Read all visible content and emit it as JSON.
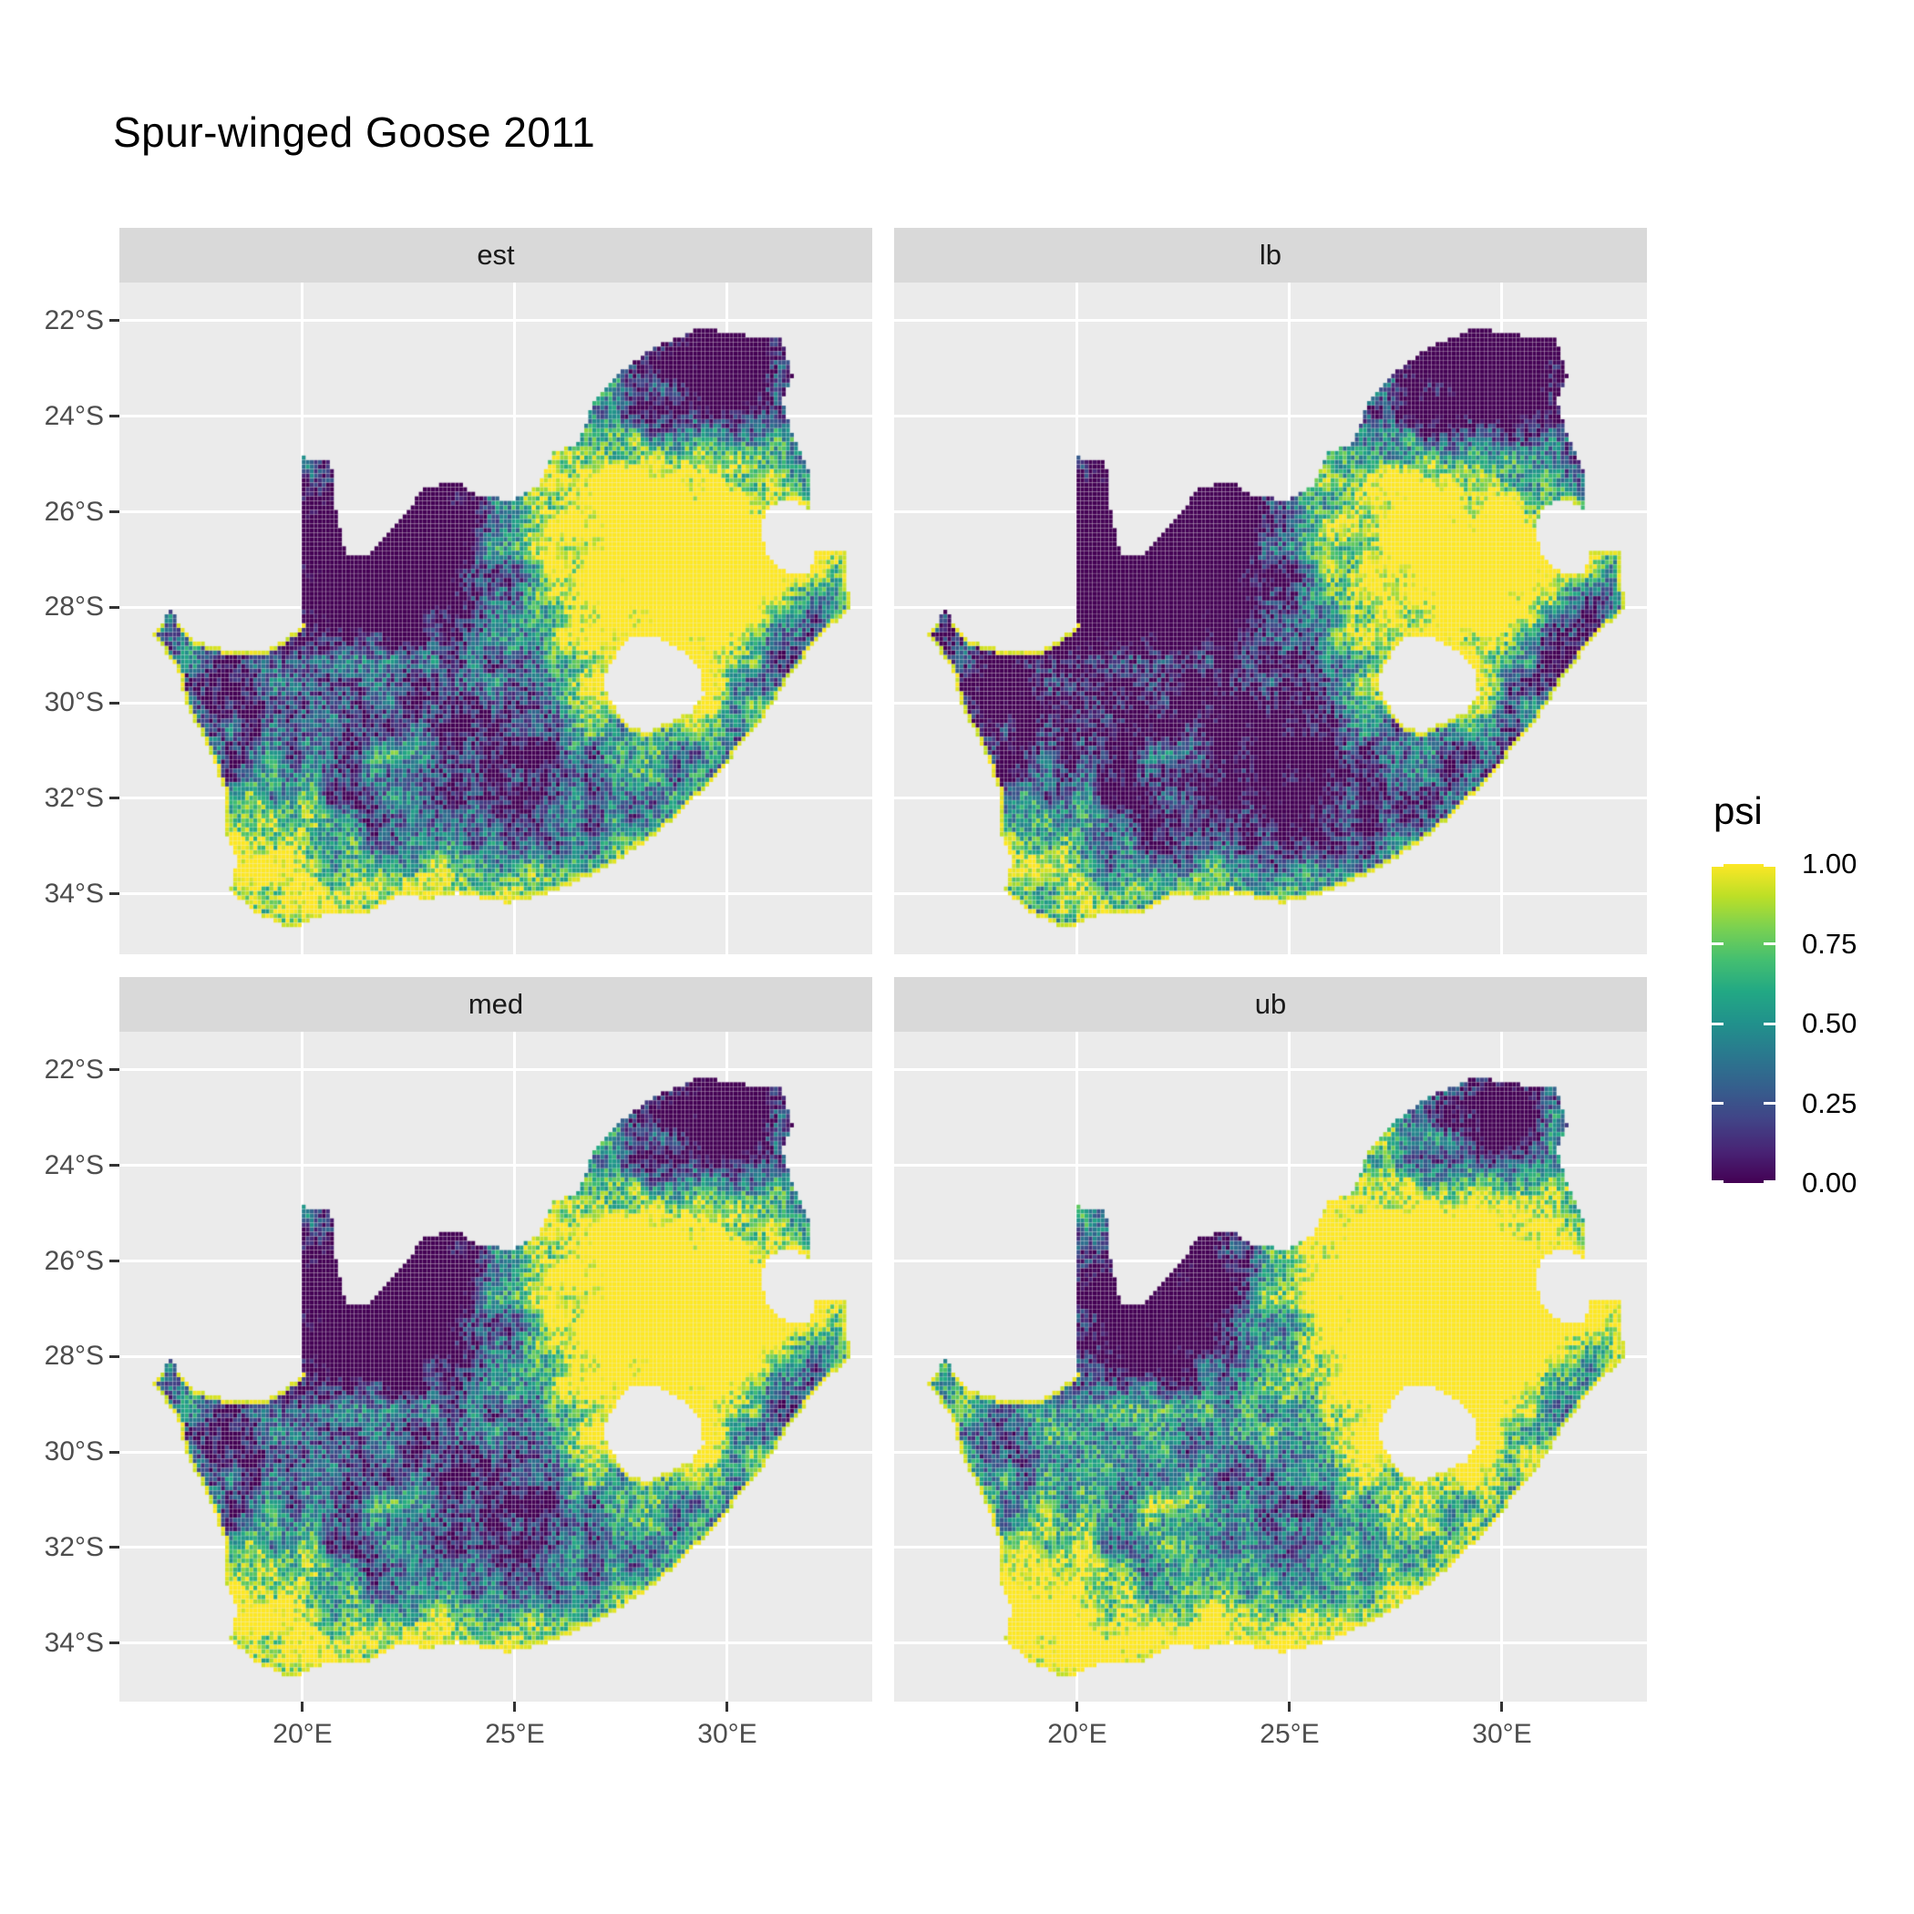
{
  "title": "Spur-winged Goose 2011",
  "facets": [
    {
      "label": "est",
      "shift": 0.0
    },
    {
      "label": "lb",
      "shift": -0.22
    },
    {
      "label": "med",
      "shift": 0.03
    },
    {
      "label": "ub",
      "shift": 0.25
    }
  ],
  "axes": {
    "y_tick_labels": [
      "22°S",
      "24°S",
      "26°S",
      "28°S",
      "30°S",
      "32°S",
      "34°S"
    ],
    "y_tick_values": [
      -22,
      -24,
      -26,
      -28,
      -30,
      -32,
      -34
    ],
    "x_tick_labels": [
      "20°E",
      "25°E",
      "30°E"
    ],
    "x_tick_values": [
      20,
      25,
      30
    ]
  },
  "legend": {
    "title": "psi",
    "labels": [
      "1.00",
      "0.75",
      "0.50",
      "0.25",
      "0.00"
    ],
    "values": [
      1.0,
      0.75,
      0.5,
      0.25,
      0.0
    ]
  },
  "colors": {
    "background": "#FFFFFF",
    "panel_bg": "#EBEBEB",
    "strip_bg": "#D9D9D9",
    "strip_text": "#1A1A1A",
    "axis_text": "#4D4D4D",
    "tick_mark": "#333333",
    "gridline": "#FFFFFF",
    "title_text": "#000000",
    "viridis": [
      "#440154",
      "#482475",
      "#414487",
      "#355F8D",
      "#2A788E",
      "#21918C",
      "#22A884",
      "#44BF70",
      "#7AD151",
      "#BDDF26",
      "#FDE725"
    ]
  },
  "chart_data": {
    "type": "heatmap",
    "subtype": "faceted_raster_map",
    "title": "Spur-winged Goose 2011",
    "region": "South Africa",
    "facets": [
      "est",
      "lb",
      "med",
      "ub"
    ],
    "facet_layout": [
      [
        "est",
        "lb"
      ],
      [
        "med",
        "ub"
      ]
    ],
    "fill_variable": "psi",
    "fill_range": [
      0.0,
      1.0
    ],
    "legend_ticks": [
      0.0,
      0.25,
      0.5,
      0.75,
      1.0
    ],
    "colormap": "viridis",
    "x_axis": {
      "ticks_deg_east": [
        20,
        25,
        30
      ],
      "range_deg_east": [
        15.7,
        33.4
      ]
    },
    "y_axis": {
      "ticks_deg_south": [
        22,
        24,
        26,
        28,
        30,
        32,
        34
      ],
      "range_deg_south": [
        21.2,
        35.3
      ]
    },
    "grid": "major white gridlines on grey panel",
    "legend_position": "right",
    "pattern_notes": "psi high (yellow) along coastline, around Lesotho and over the north-eastern interior; low (dark purple) in the north-west Kalahari and far north-east; lb facet darkest, ub facet brightest"
  },
  "map": {
    "cell_deg": 0.095,
    "base": 0.45,
    "contrast": 1.3,
    "noise_amps": [
      0.38,
      0.42,
      0.3
    ],
    "coast_rule": {
      "lat_max": -28.3,
      "east_lon": 31.9,
      "east_lat_max": -26.4
    },
    "outline": [
      [
        16.47,
        -28.57
      ],
      [
        17.05,
        -29.25
      ],
      [
        17.25,
        -30.0
      ],
      [
        17.85,
        -31.1
      ],
      [
        18.2,
        -31.9
      ],
      [
        18.2,
        -32.75
      ],
      [
        18.45,
        -33.3
      ],
      [
        18.3,
        -33.9
      ],
      [
        18.8,
        -34.35
      ],
      [
        19.7,
        -34.75
      ],
      [
        20.5,
        -34.45
      ],
      [
        21.5,
        -34.4
      ],
      [
        22.2,
        -34.05
      ],
      [
        23.0,
        -34.1
      ],
      [
        23.6,
        -33.98
      ],
      [
        24.8,
        -34.2
      ],
      [
        25.65,
        -34.03
      ],
      [
        26.45,
        -33.75
      ],
      [
        27.05,
        -33.5
      ],
      [
        27.95,
        -33.0
      ],
      [
        28.6,
        -32.55
      ],
      [
        29.35,
        -31.9
      ],
      [
        30.0,
        -31.25
      ],
      [
        30.8,
        -30.4
      ],
      [
        31.4,
        -29.55
      ],
      [
        32.2,
        -28.6
      ],
      [
        32.9,
        -28.05
      ],
      [
        32.82,
        -27.4
      ],
      [
        32.85,
        -26.85
      ],
      [
        32.1,
        -26.8
      ],
      [
        31.95,
        -27.32
      ],
      [
        31.45,
        -27.3
      ],
      [
        30.95,
        -26.95
      ],
      [
        30.78,
        -26.3
      ],
      [
        30.95,
        -25.95
      ],
      [
        31.4,
        -25.73
      ],
      [
        31.95,
        -25.95
      ],
      [
        32.0,
        -25.6
      ],
      [
        31.9,
        -25.1
      ],
      [
        31.55,
        -24.4
      ],
      [
        31.3,
        -23.7
      ],
      [
        31.55,
        -23.2
      ],
      [
        31.3,
        -22.4
      ],
      [
        30.35,
        -22.3
      ],
      [
        29.4,
        -22.15
      ],
      [
        28.2,
        -22.6
      ],
      [
        27.3,
        -23.2
      ],
      [
        26.9,
        -23.65
      ],
      [
        26.45,
        -24.6
      ],
      [
        25.9,
        -24.75
      ],
      [
        25.55,
        -25.45
      ],
      [
        25.0,
        -25.75
      ],
      [
        24.2,
        -25.7
      ],
      [
        23.6,
        -25.35
      ],
      [
        22.9,
        -25.5
      ],
      [
        22.2,
        -26.25
      ],
      [
        21.6,
        -26.9
      ],
      [
        21.05,
        -26.9
      ],
      [
        20.8,
        -26.1
      ],
      [
        20.68,
        -24.95
      ],
      [
        19.98,
        -24.85
      ],
      [
        19.98,
        -28.42
      ],
      [
        19.2,
        -28.9
      ],
      [
        18.1,
        -28.87
      ],
      [
        17.4,
        -28.7
      ],
      [
        16.9,
        -28.08
      ]
    ],
    "lesotho_hole": [
      [
        27.05,
        -29.6
      ],
      [
        27.35,
        -29.05
      ],
      [
        27.75,
        -28.62
      ],
      [
        28.35,
        -28.6
      ],
      [
        29.0,
        -28.95
      ],
      [
        29.35,
        -29.3
      ],
      [
        29.45,
        -29.85
      ],
      [
        29.15,
        -30.2
      ],
      [
        28.6,
        -30.42
      ],
      [
        28.1,
        -30.65
      ],
      [
        27.55,
        -30.4
      ],
      [
        27.3,
        -30.0
      ]
    ],
    "field_blobs": [
      [
        28.3,
        -26.6,
        3.6,
        2.2,
        0.85
      ],
      [
        30.0,
        -27.6,
        2.0,
        1.5,
        0.35
      ],
      [
        22.3,
        -26.8,
        2.6,
        2.2,
        -0.85
      ],
      [
        29.8,
        -23.1,
        2.1,
        1.3,
        -0.75
      ],
      [
        31.6,
        -28.7,
        1.4,
        1.2,
        -0.45
      ],
      [
        23.5,
        -34.2,
        4.5,
        1.1,
        0.5
      ],
      [
        28.3,
        -29.6,
        1.7,
        1.2,
        0.45
      ],
      [
        24.8,
        -31.5,
        2.5,
        1.8,
        -0.35
      ],
      [
        18.6,
        -33.5,
        1.3,
        1.3,
        0.35
      ],
      [
        17.8,
        -29.8,
        1.1,
        1.6,
        -0.3
      ]
    ]
  }
}
